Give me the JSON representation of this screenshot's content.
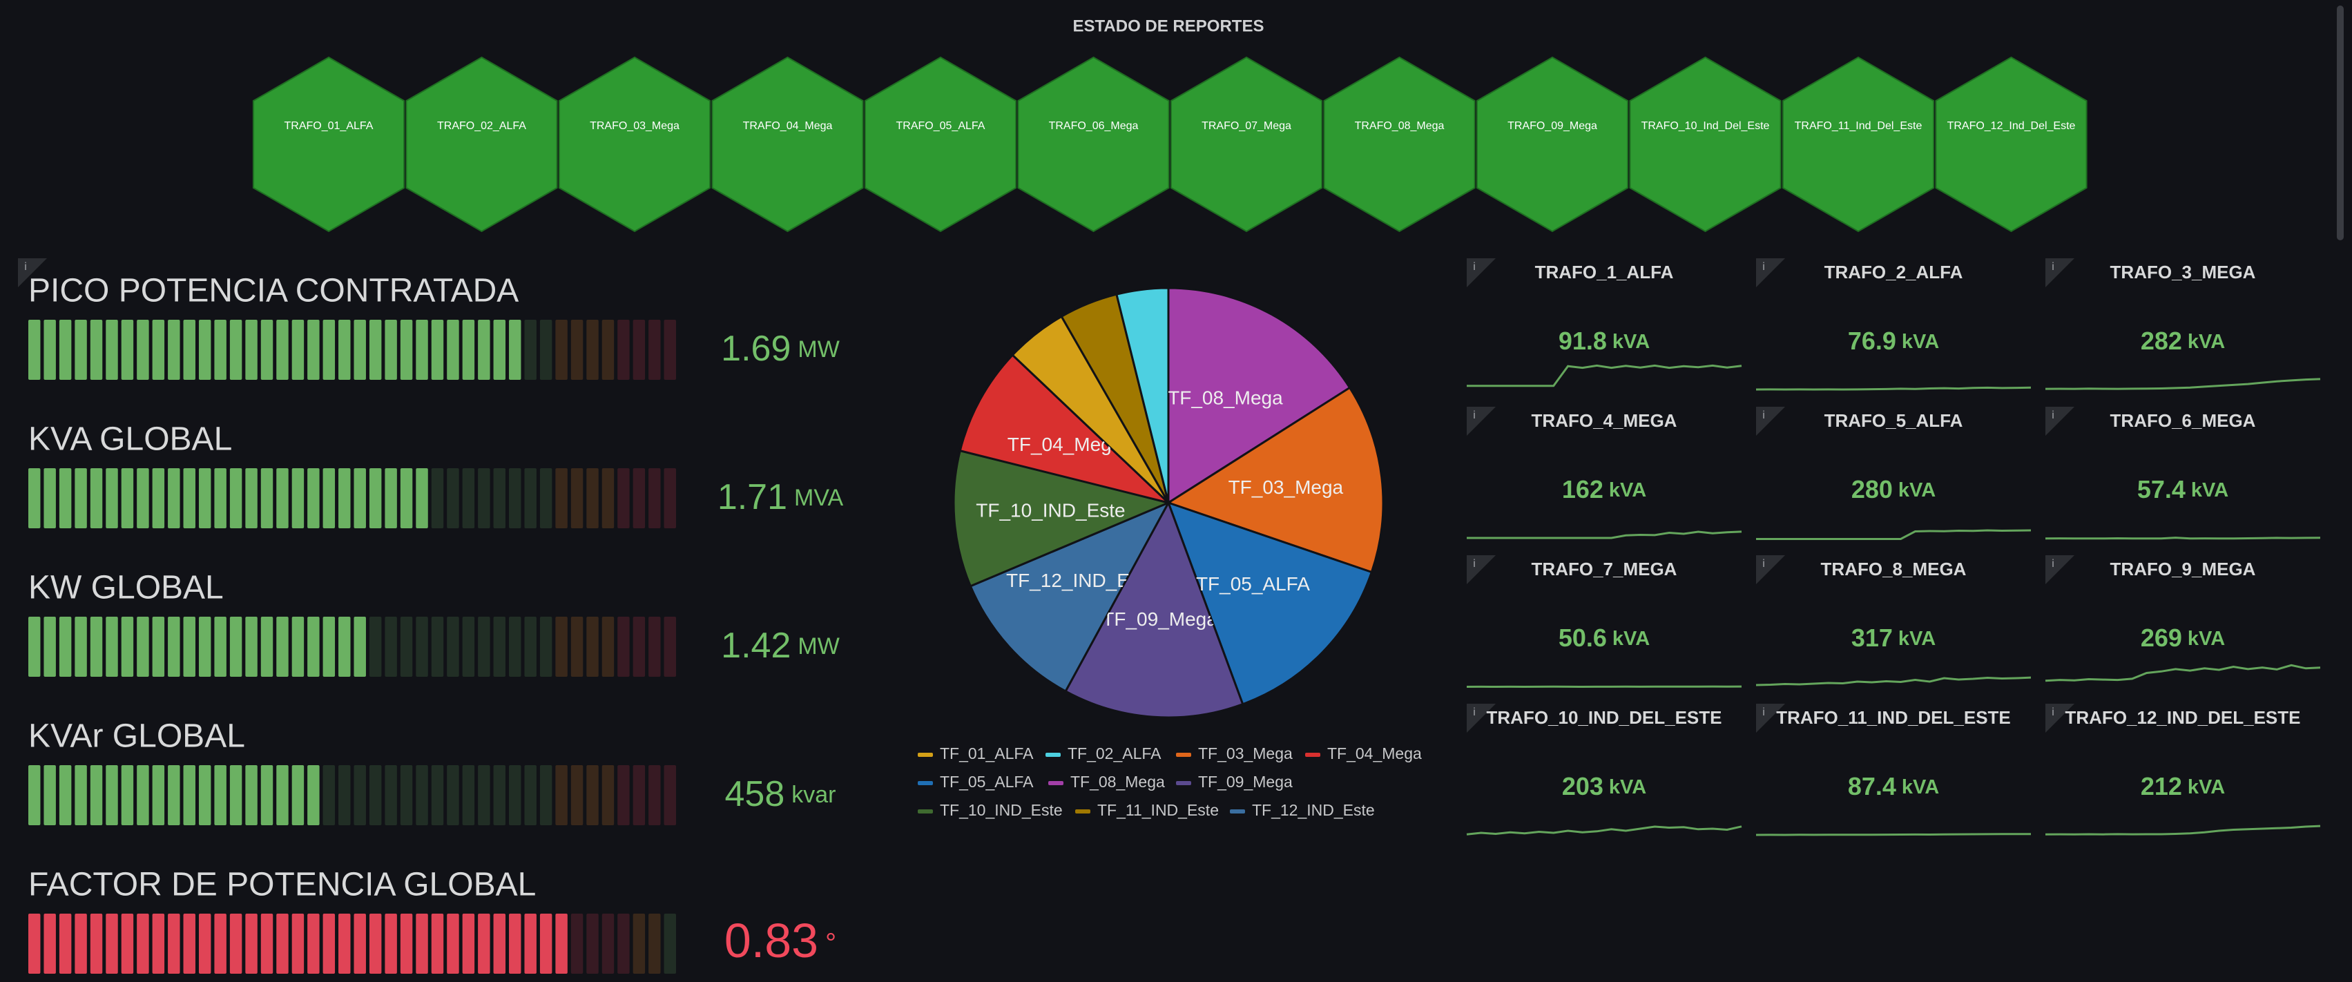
{
  "header": {
    "title": "ESTADO DE REPORTES"
  },
  "hexagons": {
    "color": "#2e9a31",
    "items": [
      "TRAFO_01_ALFA",
      "TRAFO_02_ALFA",
      "TRAFO_03_Mega",
      "TRAFO_04_Mega",
      "TRAFO_05_ALFA",
      "TRAFO_06_Mega",
      "TRAFO_07_Mega",
      "TRAFO_08_Mega",
      "TRAFO_09_Mega",
      "TRAFO_10_Ind_Del_Este",
      "TRAFO_11_Ind_Del_Este",
      "TRAFO_12_Ind_Del_Este"
    ]
  },
  "gauges": [
    {
      "title": "PICO POTENCIA CONTRATADA",
      "value": 1.69,
      "unit": "MW",
      "min": 0,
      "max": 2.2,
      "base_color": "#73bf69",
      "thresholds": [
        {
          "value": 1.76,
          "color": "#ff9830"
        },
        {
          "value": 1.98,
          "color": "#f2495c"
        }
      ]
    },
    {
      "title": "KVA GLOBAL",
      "value": 1.71,
      "unit": "MVA",
      "min": 0,
      "max": 2.75,
      "base_color": "#73bf69",
      "thresholds": [
        {
          "value": 2.2,
          "color": "#ff9830"
        },
        {
          "value": 2.48,
          "color": "#f2495c"
        }
      ]
    },
    {
      "title": "KW GLOBAL",
      "value": 1.42,
      "unit": "MW",
      "min": 0,
      "max": 2.75,
      "base_color": "#73bf69",
      "thresholds": [
        {
          "value": 2.2,
          "color": "#ff9830"
        },
        {
          "value": 2.48,
          "color": "#f2495c"
        }
      ]
    },
    {
      "title": "KVAr GLOBAL",
      "value": 458,
      "unit": "kvar",
      "min": 0,
      "max": 1000,
      "base_color": "#73bf69",
      "thresholds": [
        {
          "value": 800,
          "color": "#ff9830"
        },
        {
          "value": 900,
          "color": "#f2495c"
        }
      ]
    },
    {
      "title": "FACTOR DE POTENCIA GLOBAL",
      "value": 0.83,
      "unit": "°",
      "min": 0,
      "max": 1,
      "base_color": "#f2495c",
      "thresholds": [
        {
          "value": 0.92,
          "color": "#ff9830"
        },
        {
          "value": 0.97,
          "color": "#73bf69"
        }
      ]
    }
  ],
  "chart_data": {
    "type": "pie",
    "sort": "desc",
    "categories": [
      "TF_01_ALFA",
      "TF_02_ALFA",
      "TF_03_Mega",
      "TF_04_Mega",
      "TF_05_ALFA",
      "TF_08_Mega",
      "TF_09_Mega",
      "TF_10_IND_Este",
      "TF_11_IND_Este",
      "TF_12_IND_Este"
    ],
    "values": [
      91.8,
      76.9,
      282,
      162,
      280,
      317,
      269,
      203,
      87.4,
      212
    ],
    "colors": [
      "#d4a017",
      "#4dd0e1",
      "#e0661b",
      "#d9302f",
      "#1f6fb5",
      "#a33fa8",
      "#5b4a8f",
      "#3f6a30",
      "#a07800",
      "#3a6ea0"
    ],
    "legend": "bottom"
  },
  "stat_unit": "kVA",
  "stats": [
    {
      "title": "TRAFO_1_ALFA",
      "value": 91.8,
      "spark_ylim": [
        0,
        110
      ],
      "spark": [
        20,
        20,
        20,
        20,
        20,
        20,
        20,
        90,
        84,
        92,
        84,
        91,
        85,
        92,
        84,
        90,
        86,
        92,
        85,
        91
      ]
    },
    {
      "title": "TRAFO_2_ALFA",
      "value": 76.9,
      "spark_ylim": [
        0,
        600
      ],
      "spark": [
        40,
        42,
        40,
        41,
        40,
        42,
        40,
        41,
        45,
        48,
        55,
        50,
        60,
        65,
        58,
        70,
        75,
        68,
        72,
        77
      ]
    },
    {
      "title": "TRAFO_3_MEGA",
      "value": 282,
      "spark_ylim": [
        0,
        700
      ],
      "spark": [
        60,
        62,
        60,
        65,
        62,
        60,
        64,
        66,
        70,
        80,
        90,
        110,
        130,
        150,
        170,
        200,
        230,
        250,
        270,
        282
      ]
    },
    {
      "title": "TRAFO_4_MEGA",
      "value": 162,
      "spark_ylim": [
        0,
        600
      ],
      "spark": [
        40,
        40,
        40,
        40,
        40,
        40,
        40,
        40,
        40,
        40,
        40,
        90,
        100,
        95,
        140,
        120,
        160,
        130,
        150,
        162
      ]
    },
    {
      "title": "TRAFO_5_ALFA",
      "value": 280,
      "spark_ylim": [
        0,
        900
      ],
      "spark": [
        30,
        30,
        30,
        30,
        30,
        30,
        30,
        30,
        30,
        30,
        30,
        250,
        260,
        255,
        270,
        265,
        280,
        270,
        275,
        280
      ]
    },
    {
      "title": "TRAFO_6_MEGA",
      "value": 57.4,
      "spark_ylim": [
        0,
        800
      ],
      "spark": [
        40,
        42,
        40,
        41,
        40,
        45,
        40,
        41,
        40,
        60,
        40,
        42,
        40,
        41,
        45,
        50,
        55,
        52,
        56,
        57
      ]
    },
    {
      "title": "TRAFO_7_MEGA",
      "value": 50.6,
      "spark_ylim": [
        0,
        800
      ],
      "spark": [
        45,
        46,
        45,
        47,
        45,
        46,
        48,
        46,
        45,
        47,
        46,
        48,
        47,
        49,
        48,
        50,
        49,
        51,
        50,
        51
      ]
    },
    {
      "title": "TRAFO_8_MEGA",
      "value": 317,
      "spark_ylim": [
        0,
        900
      ],
      "spark": [
        100,
        110,
        130,
        120,
        140,
        160,
        150,
        200,
        180,
        210,
        190,
        250,
        200,
        300,
        260,
        280,
        310,
        290,
        300,
        317
      ]
    },
    {
      "title": "TRAFO_9_MEGA",
      "value": 269,
      "spark_ylim": [
        0,
        400
      ],
      "spark": [
        100,
        110,
        105,
        120,
        115,
        110,
        125,
        200,
        220,
        250,
        230,
        260,
        240,
        280,
        250,
        270,
        245,
        300,
        260,
        269
      ]
    },
    {
      "title": "TRAFO_10_IND_DEL_ESTE",
      "value": 203,
      "spark_ylim": [
        0,
        600
      ],
      "spark": [
        50,
        80,
        60,
        90,
        70,
        100,
        80,
        120,
        90,
        110,
        150,
        120,
        160,
        200,
        180,
        190,
        150,
        160,
        140,
        203
      ]
    },
    {
      "title": "TRAFO_11_IND_DEL_ESTE",
      "value": 87.4,
      "spark_ylim": [
        0,
        900
      ],
      "spark": [
        60,
        62,
        61,
        63,
        62,
        65,
        64,
        66,
        65,
        68,
        70,
        72,
        71,
        75,
        78,
        80,
        82,
        84,
        86,
        87
      ]
    },
    {
      "title": "TRAFO_12_IND_DEL_ESTE",
      "value": 212,
      "spark_ylim": [
        0,
        600
      ],
      "spark": [
        50,
        52,
        50,
        53,
        51,
        55,
        52,
        54,
        53,
        60,
        70,
        90,
        120,
        140,
        150,
        160,
        170,
        180,
        200,
        212
      ]
    }
  ]
}
